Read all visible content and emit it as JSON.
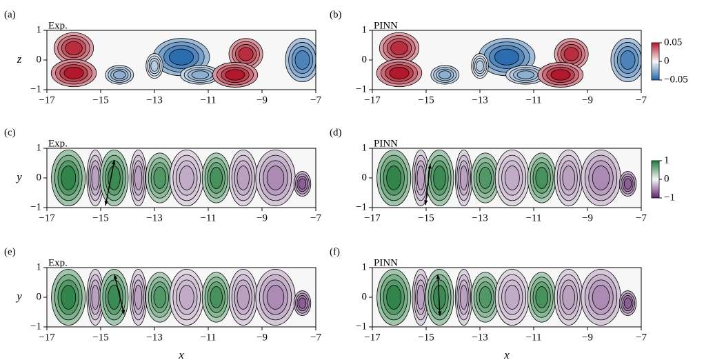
{
  "chart_data": [
    {
      "type": "contour",
      "panel_label": "(a)",
      "title": "Exp.",
      "ylabel": "z",
      "xlim": [
        -17,
        -7
      ],
      "xticks": [
        {
          "value": -17,
          "label": "−17"
        },
        {
          "value": -15,
          "label": "−15"
        },
        {
          "value": -13,
          "label": "−13"
        },
        {
          "value": -11,
          "label": "−11"
        },
        {
          "value": -9,
          "label": "−9"
        },
        {
          "value": -7,
          "label": "−7"
        }
      ],
      "ylim": [
        -1,
        1
      ],
      "yticks": [
        {
          "value": -1,
          "label": "−1"
        },
        0,
        1
      ],
      "colors": [
        "#2166ac",
        "#f7f7f7",
        "#b2182b"
      ]
    },
    {
      "type": "contour",
      "panel_label": "(b)",
      "title": "PINN",
      "xlim": [
        -17,
        -7
      ],
      "xticks": [
        {
          "value": -17,
          "label": "−17"
        },
        {
          "value": -15,
          "label": "−15"
        },
        {
          "value": -13,
          "label": "−13"
        },
        {
          "value": -11,
          "label": "−11"
        },
        {
          "value": -9,
          "label": "−9"
        },
        {
          "value": -7,
          "label": "−7"
        }
      ],
      "ylim": [
        -1,
        1
      ],
      "yticks": [
        {
          "value": -1,
          "label": "−1"
        },
        0,
        1
      ],
      "colors": [
        "#2166ac",
        "#f7f7f7",
        "#b2182b"
      ],
      "colorbar": {
        "lim": [
          -0.05,
          0.05
        ],
        "ticks": [
          0.05,
          0,
          {
            "value": -0.05,
            "label": "−0.05"
          }
        ]
      }
    },
    {
      "type": "contour",
      "panel_label": "(c)",
      "title": "Exp.",
      "ylabel": "y",
      "xlim": [
        -17,
        -7
      ],
      "xticks": [
        {
          "value": -17,
          "label": "−17"
        },
        {
          "value": -15,
          "label": "−15"
        },
        {
          "value": -13,
          "label": "−13"
        },
        {
          "value": -11,
          "label": "−11"
        },
        {
          "value": -9,
          "label": "−9"
        },
        {
          "value": -7,
          "label": "−7"
        }
      ],
      "ylim": [
        -1,
        1
      ],
      "yticks": [
        {
          "value": -1,
          "label": "−1"
        },
        0,
        1
      ],
      "colors": [
        "#5e1f6e",
        "#f7f7f7",
        "#1b7837"
      ]
    },
    {
      "type": "contour",
      "panel_label": "(d)",
      "title": "PINN",
      "xlim": [
        -17,
        -7
      ],
      "xticks": [
        {
          "value": -17,
          "label": "−17"
        },
        {
          "value": -15,
          "label": "−15"
        },
        {
          "value": -13,
          "label": "−13"
        },
        {
          "value": -11,
          "label": "−11"
        },
        {
          "value": -9,
          "label": "−9"
        },
        {
          "value": -7,
          "label": "−7"
        }
      ],
      "ylim": [
        -1,
        1
      ],
      "yticks": [
        {
          "value": -1,
          "label": "−1"
        },
        0,
        1
      ],
      "colors": [
        "#5e1f6e",
        "#f7f7f7",
        "#1b7837"
      ],
      "colorbar": {
        "lim": [
          -1,
          1
        ],
        "ticks": [
          1,
          0,
          {
            "value": -1,
            "label": "−1"
          }
        ]
      }
    },
    {
      "type": "contour",
      "panel_label": "(e)",
      "title": "Exp.",
      "ylabel": "y",
      "xlabel": "x",
      "xlim": [
        -17,
        -7
      ],
      "xticks": [
        {
          "value": -17,
          "label": "−17"
        },
        {
          "value": -15,
          "label": "−15"
        },
        {
          "value": -13,
          "label": "−13"
        },
        {
          "value": -11,
          "label": "−11"
        },
        {
          "value": -9,
          "label": "−9"
        },
        {
          "value": -7,
          "label": "−7"
        }
      ],
      "ylim": [
        -1,
        1
      ],
      "yticks": [
        {
          "value": -1,
          "label": "−1"
        },
        0,
        1
      ],
      "colors": [
        "#5e1f6e",
        "#f7f7f7",
        "#1b7837"
      ]
    },
    {
      "type": "contour",
      "panel_label": "(f)",
      "title": "PINN",
      "xlabel": "x",
      "xlim": [
        -17,
        -7
      ],
      "xticks": [
        {
          "value": -17,
          "label": "−17"
        },
        {
          "value": -15,
          "label": "−15"
        },
        {
          "value": -13,
          "label": "−13"
        },
        {
          "value": -11,
          "label": "−11"
        },
        {
          "value": -9,
          "label": "−9"
        },
        {
          "value": -7,
          "label": "−7"
        }
      ],
      "ylim": [
        -1,
        1
      ],
      "yticks": [
        {
          "value": -1,
          "label": "−1"
        },
        0,
        1
      ],
      "colors": [
        "#5e1f6e",
        "#f7f7f7",
        "#1b7837"
      ]
    }
  ]
}
